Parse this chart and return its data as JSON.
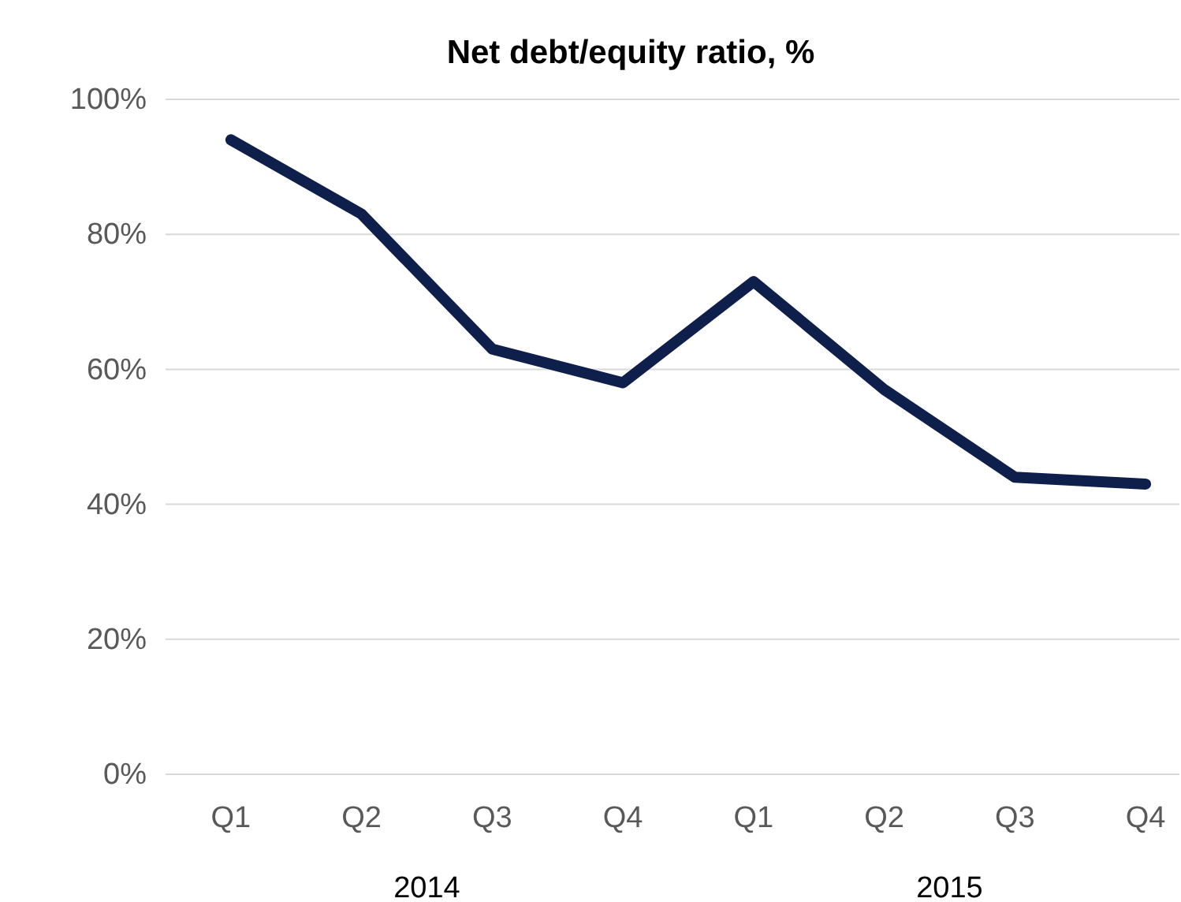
{
  "chart_data": {
    "type": "line",
    "title": "Net debt/equity ratio, %",
    "categories": [
      "Q1",
      "Q2",
      "Q3",
      "Q4",
      "Q1",
      "Q2",
      "Q3",
      "Q4"
    ],
    "series": [
      {
        "color": "#0e1f4b",
        "values": [
          94,
          83,
          63,
          58,
          73,
          57,
          44,
          43
        ]
      }
    ],
    "ylim": [
      0,
      100
    ],
    "yticks": [
      {
        "value": 0,
        "label": "0%"
      },
      {
        "value": 20,
        "label": "20%"
      },
      {
        "value": 40,
        "label": "40%"
      },
      {
        "value": 60,
        "label": "60%"
      },
      {
        "value": 80,
        "label": "80%"
      },
      {
        "value": 100,
        "label": "100%"
      }
    ],
    "grid": "y",
    "marker": "none",
    "line_style": "solid",
    "annotations": [
      "2014",
      "2015"
    ]
  }
}
